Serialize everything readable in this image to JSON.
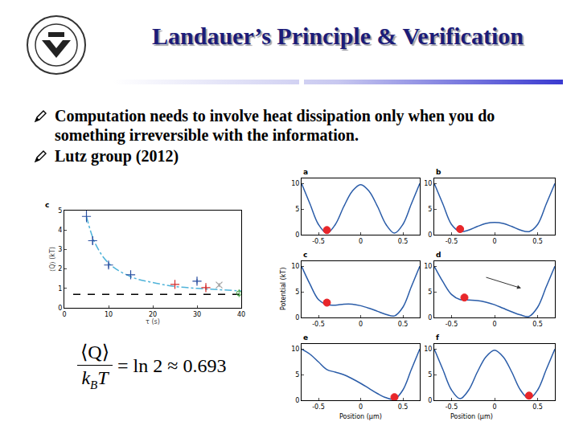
{
  "slide": {
    "title": "Landauer’s Principle & Verification",
    "bullets": [
      "Computation needs to involve heat dissipation only when you do something irreversible with the information.",
      "Lutz group (2012)"
    ],
    "formula": {
      "numerator": "⟨Q⟩",
      "denominator": "k",
      "denominator_sub": "B",
      "denominator_tail": "T",
      "rhs": "= ln 2 ≈ 0.693"
    },
    "panel_axes": {
      "y_label": "Potential (kT)",
      "x_label": "Position (μm)"
    }
  },
  "chart_data": [
    {
      "type": "scatter",
      "label": "c",
      "x_label": "τ (s)",
      "y_label": "⟨Q⟩ (kT)",
      "xlim": [
        0,
        40
      ],
      "xticks": [
        0,
        10,
        20,
        30,
        40
      ],
      "ylim": [
        0,
        5
      ],
      "yticks": [
        0,
        1,
        2,
        3,
        4,
        5
      ],
      "grid": false,
      "series": [
        {
          "type": "line",
          "color": "#4fb3d9",
          "line_style": "dashdot",
          "x": [
            5,
            7,
            10,
            15,
            20,
            25,
            30,
            35,
            40
          ],
          "values": [
            4.7,
            3.3,
            2.3,
            1.6,
            1.3,
            1.1,
            1.0,
            0.93,
            0.87
          ]
        },
        {
          "type": "line",
          "color": "#000000",
          "line_style": "dash",
          "x": [
            2,
            40
          ],
          "values": [
            0.693,
            0.693
          ]
        },
        {
          "type": "scatter",
          "color": "#2a4fa0",
          "marker": "cross",
          "x": [
            5,
            6.4,
            10,
            15,
            30
          ],
          "values": [
            4.7,
            3.45,
            2.2,
            1.7,
            1.37
          ],
          "errors": [
            0.3,
            0.2,
            0.15,
            0.15,
            0.12
          ]
        },
        {
          "type": "scatter",
          "color": "#d42a2a",
          "marker": "cross",
          "x": [
            25,
            32
          ],
          "values": [
            1.2,
            1.04
          ],
          "errors": [
            0.15,
            0.12
          ]
        },
        {
          "type": "scatter",
          "color": "#a0a0a0",
          "marker": "x",
          "x": [
            35
          ],
          "values": [
            1.17
          ],
          "errors": [
            0.1
          ]
        },
        {
          "type": "scatter",
          "color": "#3aa03a",
          "marker": "circle",
          "x": [
            39.5
          ],
          "values": [
            0.75
          ],
          "errors": [
            0.2
          ]
        }
      ]
    },
    {
      "type": "line",
      "label": "a",
      "xlim": [
        -0.7,
        0.7
      ],
      "xticks": [
        -0.5,
        0,
        0.5
      ],
      "ylim": [
        0,
        11
      ],
      "yticks": [
        0,
        5,
        10
      ],
      "grid": false,
      "series": [
        {
          "type": "line",
          "color": "#2a5ca8",
          "x": [
            -0.7,
            -0.6,
            -0.5,
            -0.4,
            -0.3,
            -0.2,
            -0.1,
            0,
            0.1,
            0.2,
            0.3,
            0.4,
            0.5,
            0.6,
            0.7
          ],
          "values": [
            10,
            6,
            2,
            0.3,
            2,
            5.5,
            8.5,
            9.8,
            8.5,
            5.5,
            2,
            0.3,
            2,
            6,
            10
          ]
        },
        {
          "type": "scatter",
          "color": "#e8262a",
          "marker": "circle",
          "x": [
            -0.4
          ],
          "values": [
            0.9
          ]
        }
      ]
    },
    {
      "type": "line",
      "label": "b",
      "xlim": [
        -0.7,
        0.7
      ],
      "xticks": [
        -0.5,
        0,
        0.5
      ],
      "ylim": [
        0,
        11
      ],
      "yticks": [
        0,
        5,
        10
      ],
      "grid": false,
      "series": [
        {
          "type": "line",
          "color": "#2a5ca8",
          "x": [
            -0.7,
            -0.6,
            -0.5,
            -0.4,
            -0.3,
            -0.2,
            -0.1,
            0,
            0.1,
            0.2,
            0.3,
            0.4,
            0.5,
            0.6,
            0.7
          ],
          "values": [
            10,
            6,
            2,
            0.6,
            0.9,
            1.6,
            2.2,
            2.4,
            2.2,
            1.6,
            0.9,
            0.6,
            2,
            6,
            10
          ]
        },
        {
          "type": "scatter",
          "color": "#e8262a",
          "marker": "circle",
          "x": [
            -0.4
          ],
          "values": [
            1.1
          ]
        }
      ]
    },
    {
      "type": "line",
      "label": "c",
      "xlim": [
        -0.7,
        0.7
      ],
      "xticks": [
        -0.5,
        0,
        0.5
      ],
      "ylim": [
        0,
        11
      ],
      "yticks": [
        0,
        5,
        10
      ],
      "grid": false,
      "series": [
        {
          "type": "line",
          "color": "#2a5ca8",
          "x": [
            -0.7,
            -0.6,
            -0.5,
            -0.4,
            -0.3,
            -0.2,
            -0.1,
            0,
            0.1,
            0.2,
            0.3,
            0.4,
            0.5,
            0.6,
            0.7
          ],
          "values": [
            10,
            6.5,
            3.5,
            2.5,
            2.4,
            2.6,
            2.6,
            2.3,
            1.8,
            1.2,
            0.6,
            0.3,
            2,
            6,
            10
          ]
        },
        {
          "type": "scatter",
          "color": "#e8262a",
          "marker": "circle",
          "x": [
            -0.4
          ],
          "values": [
            2.9
          ]
        }
      ]
    },
    {
      "type": "line",
      "label": "d",
      "xlim": [
        -0.7,
        0.7
      ],
      "xticks": [
        -0.5,
        0,
        0.5
      ],
      "ylim": [
        0,
        11
      ],
      "yticks": [
        0,
        5,
        10
      ],
      "grid": false,
      "series": [
        {
          "type": "line",
          "color": "#2a5ca8",
          "x": [
            -0.7,
            -0.6,
            -0.5,
            -0.4,
            -0.3,
            -0.2,
            -0.1,
            0,
            0.1,
            0.2,
            0.3,
            0.4,
            0.5,
            0.6,
            0.7
          ],
          "values": [
            10,
            7,
            4.5,
            3.5,
            3.4,
            3.3,
            3,
            2.5,
            1.8,
            1.1,
            0.5,
            0.2,
            2,
            6,
            10
          ]
        },
        {
          "type": "scatter",
          "color": "#e8262a",
          "marker": "circle",
          "x": [
            -0.35
          ],
          "values": [
            3.9
          ]
        }
      ]
    },
    {
      "type": "line",
      "label": "e",
      "xlim": [
        -0.7,
        0.7
      ],
      "xticks": [
        -0.5,
        0,
        0.5
      ],
      "ylim": [
        0,
        11
      ],
      "yticks": [
        0,
        5,
        10
      ],
      "grid": false,
      "series": [
        {
          "type": "line",
          "color": "#2a5ca8",
          "x": [
            -0.7,
            -0.6,
            -0.5,
            -0.4,
            -0.3,
            -0.2,
            -0.1,
            0,
            0.1,
            0.2,
            0.3,
            0.4,
            0.5,
            0.6,
            0.7
          ],
          "values": [
            10,
            9,
            7.5,
            6,
            5.5,
            5,
            4.2,
            3.3,
            2.3,
            1.3,
            0.5,
            0.2,
            2,
            6,
            10
          ]
        },
        {
          "type": "scatter",
          "color": "#e8262a",
          "marker": "circle",
          "x": [
            0.4
          ],
          "values": [
            0.6
          ]
        }
      ]
    },
    {
      "type": "line",
      "label": "f",
      "xlim": [
        -0.7,
        0.7
      ],
      "xticks": [
        -0.5,
        0,
        0.5
      ],
      "ylim": [
        0,
        11
      ],
      "yticks": [
        0,
        5,
        10
      ],
      "grid": false,
      "series": [
        {
          "type": "line",
          "color": "#2a5ca8",
          "x": [
            -0.7,
            -0.6,
            -0.5,
            -0.4,
            -0.3,
            -0.2,
            -0.1,
            0,
            0.1,
            0.2,
            0.3,
            0.4,
            0.5,
            0.6,
            0.7
          ],
          "values": [
            10,
            6,
            2,
            0.3,
            2,
            5.5,
            8.5,
            9.8,
            8.5,
            5.5,
            2,
            0.3,
            2,
            6,
            10
          ]
        },
        {
          "type": "scatter",
          "color": "#e8262a",
          "marker": "circle",
          "x": [
            0.4
          ],
          "values": [
            0.9
          ]
        }
      ]
    }
  ]
}
